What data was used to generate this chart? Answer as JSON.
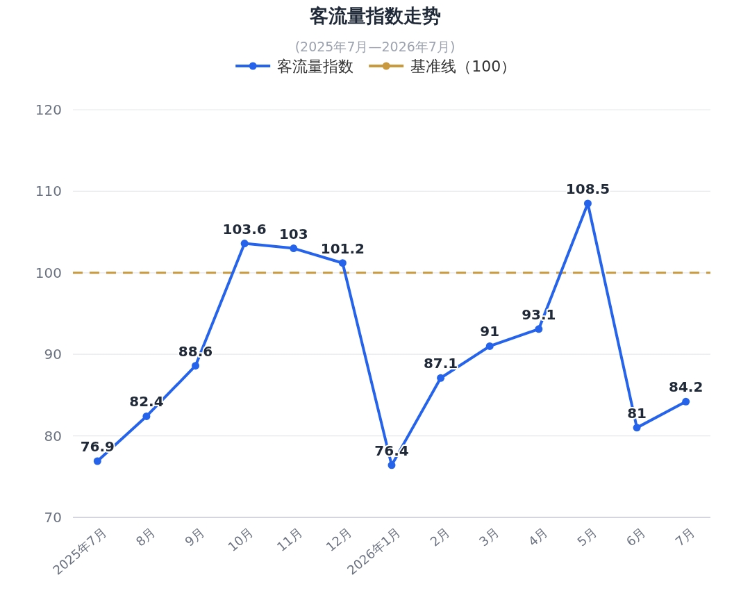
{
  "chart_data": {
    "type": "line",
    "title": "客流量指数走势",
    "subtitle": "(2025年7月—2026年7月)",
    "categories": [
      "2025年7月",
      "8月",
      "9月",
      "10月",
      "11月",
      "12月",
      "2026年1月",
      "2月",
      "3月",
      "4月",
      "5月",
      "6月",
      "7月"
    ],
    "series": [
      {
        "name": "客流量指数",
        "color": "#2563eb",
        "values": [
          76.9,
          82.4,
          88.6,
          103.6,
          103,
          101.2,
          76.4,
          87.1,
          91,
          93.1,
          108.5,
          81,
          84.2
        ]
      }
    ],
    "ref_lines": [
      {
        "axis": "y",
        "value": 100,
        "label": "基准线（100）",
        "color": "#c9993f",
        "line_style": "dashed"
      }
    ],
    "ylim": [
      70,
      120
    ],
    "yticks": [
      70,
      80,
      90,
      100,
      110,
      120
    ],
    "grid": "y",
    "legend": "top",
    "marker": "circle",
    "data_labels": true
  }
}
